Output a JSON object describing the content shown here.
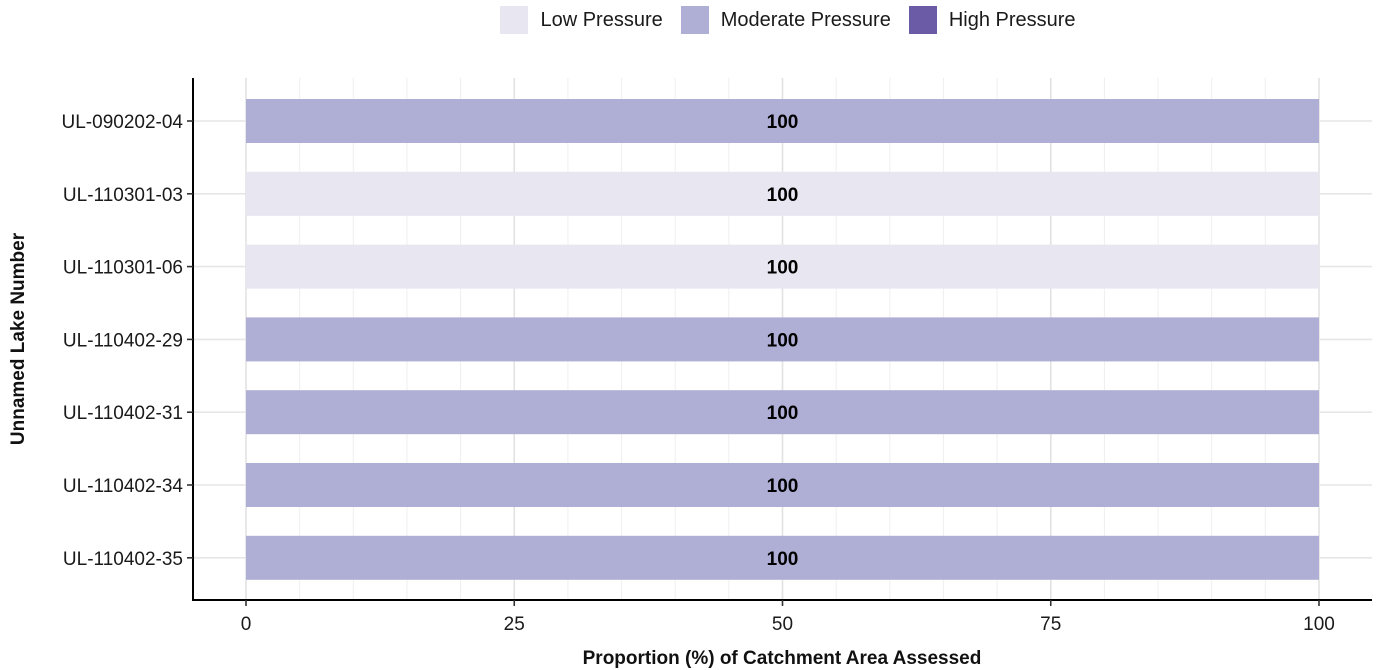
{
  "chart_data": {
    "type": "bar",
    "orientation": "horizontal",
    "stacked": true,
    "xlabel": "Proportion (%) of Catchment Area Assessed",
    "ylabel": "Unnamed Lake Number",
    "xlim": [
      0,
      100
    ],
    "x_ticks": [
      "0",
      "25",
      "50",
      "75",
      "100"
    ],
    "categories": [
      "UL-090202-04",
      "UL-110301-03",
      "UL-110301-06",
      "UL-110402-29",
      "UL-110402-31",
      "UL-110402-34",
      "UL-110402-35"
    ],
    "series": [
      {
        "name": "Low Pressure",
        "color": "#e8e6f1",
        "values": [
          0,
          100,
          100,
          0,
          0,
          0,
          0
        ]
      },
      {
        "name": "Moderate Pressure",
        "color": "#afaed5",
        "values": [
          100,
          0,
          0,
          100,
          100,
          100,
          100
        ]
      },
      {
        "name": "High Pressure",
        "color": "#6b5aa6",
        "values": [
          0,
          0,
          0,
          0,
          0,
          0,
          0
        ]
      }
    ],
    "data_labels": [
      "100",
      "100",
      "100",
      "100",
      "100",
      "100",
      "100"
    ],
    "legend_position": "top",
    "grid": true
  }
}
